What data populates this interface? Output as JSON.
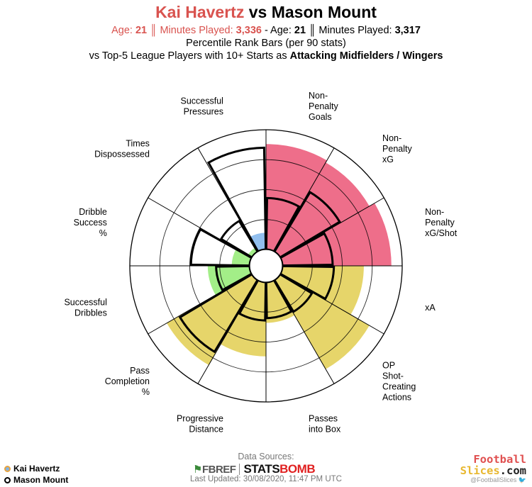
{
  "header": {
    "player1": "Kai Havertz",
    "vs": "vs",
    "player2": "Mason Mount",
    "age_label": "Age:",
    "p1_age": "21",
    "sep": "║",
    "minutes_label": "Minutes Played:",
    "p1_minutes": "3,336",
    "age_label_2": "- Age:",
    "p2_age": "21",
    "p2_minutes": "3,317",
    "subtitle": "Percentile Rank Bars (per 90 stats)",
    "comparison_prefix": "vs Top-5 League Players with 10+ Starts as",
    "comparison_group": "Attacking Midfielders / Wingers"
  },
  "colors": {
    "attacking": "#ee6e8a",
    "creation": "#e6d56a",
    "possession": "#a3ee88",
    "defending": "#92bfee",
    "p2_outline": "#000000",
    "grid": "#000000"
  },
  "chart_data": {
    "type": "radial-bar",
    "title": "Kai Havertz vs Mason Mount",
    "scale": [
      0,
      100
    ],
    "series": [
      {
        "name": "Kai Havertz",
        "style": "filled"
      },
      {
        "name": "Mason Mount",
        "style": "outline"
      }
    ],
    "categories": [
      {
        "label": [
          "Non-",
          "Penalty",
          "Goals"
        ],
        "group": "attacking",
        "p1": 88,
        "p2": 43
      },
      {
        "label": [
          "Non-",
          "Penalty",
          "xG"
        ],
        "group": "attacking",
        "p1": 86,
        "p2": 58
      },
      {
        "label": [
          "Non-",
          "Penalty",
          "xG/Shot"
        ],
        "group": "attacking",
        "p1": 91,
        "p2": 42
      },
      {
        "label": [
          "xA"
        ],
        "group": "creation",
        "p1": 68,
        "p2": 43
      },
      {
        "label": [
          "OP",
          "Shot-",
          "Creating",
          "Actions"
        ],
        "group": "creation",
        "p1": 86,
        "p2": 31
      },
      {
        "label": [
          "Passes",
          "into Box"
        ],
        "group": "creation",
        "p1": 34,
        "p2": 30
      },
      {
        "label": [
          "Progressive",
          "Distance"
        ],
        "group": "creation",
        "p1": 62,
        "p2": 32
      },
      {
        "label": [
          "Pass",
          "Completion",
          "%"
        ],
        "group": "creation",
        "p1": 82,
        "p2": 70
      },
      {
        "label": [
          "Successful",
          "Dribbles"
        ],
        "group": "possession",
        "p1": 35,
        "p2": 28
      },
      {
        "label": [
          "Dribble",
          "Success",
          "%"
        ],
        "group": "possession",
        "p1": 15,
        "p2": 49
      },
      {
        "label": [
          "Times",
          "Dispossessed"
        ],
        "group": "possession",
        "p1": 4,
        "p2": 30
      },
      {
        "label": [
          "Successful",
          "Pressures"
        ],
        "group": "defending",
        "p1": 14,
        "p2": 85
      }
    ]
  },
  "legend": {
    "p1": "Kai Havertz",
    "p2": "Mason Mount"
  },
  "footer": {
    "sources_label": "Data Sources:",
    "fbref": "FBREF",
    "statsbomb_a": "STATS",
    "statsbomb_b": "BOMB",
    "updated": "Last Updated: 30/08/2020, 11:47 PM UTC",
    "brand_line1": "Football",
    "brand_line2_a": "Slices",
    "brand_line2_b": ".com",
    "handle": "@FootballSlices"
  }
}
